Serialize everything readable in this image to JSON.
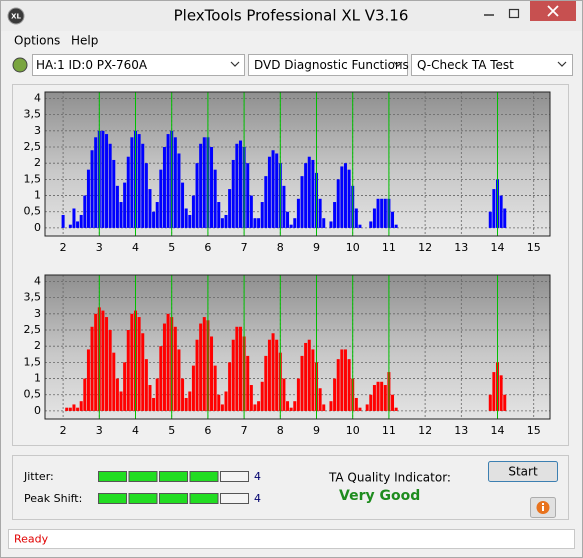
{
  "window": {
    "title": "PlexTools Professional XL V3.16",
    "icon": "XL"
  },
  "menu": [
    "Options",
    "Help"
  ],
  "toolbar": {
    "drive": "HA:1 ID:0  PX-760A",
    "function": "DVD Diagnostic Functions",
    "test": "Q-Check TA Test"
  },
  "chart_data": [
    {
      "type": "bar",
      "color": "#0000ff",
      "marker_color": "#00c000",
      "grid": true,
      "xlim": [
        1.5,
        15.45
      ],
      "ylim": [
        -0.25,
        4.2
      ],
      "xticks": [
        2,
        3,
        4,
        5,
        6,
        7,
        8,
        9,
        10,
        11,
        12,
        13,
        14,
        15
      ],
      "yticks": [
        0,
        {
          "value": 0.5,
          "label": "0,5"
        },
        1,
        {
          "value": 1.5,
          "label": "1,5"
        },
        2,
        {
          "value": 2.5,
          "label": "2,5"
        },
        3,
        {
          "value": 3.5,
          "label": "3,5"
        },
        4
      ],
      "markers": [
        3,
        4,
        5,
        6,
        7,
        8,
        9,
        10,
        11,
        14
      ],
      "x": [
        2.0,
        2.1,
        2.2,
        2.3,
        2.4,
        2.5,
        2.6,
        2.7,
        2.8,
        2.9,
        3.0,
        3.1,
        3.2,
        3.3,
        3.4,
        3.5,
        3.6,
        3.7,
        3.8,
        3.9,
        4.0,
        4.1,
        4.2,
        4.3,
        4.4,
        4.5,
        4.6,
        4.7,
        4.8,
        4.9,
        5.0,
        5.1,
        5.2,
        5.3,
        5.4,
        5.5,
        5.6,
        5.7,
        5.8,
        5.9,
        6.0,
        6.1,
        6.2,
        6.3,
        6.4,
        6.5,
        6.6,
        6.7,
        6.8,
        6.9,
        7.0,
        7.1,
        7.2,
        7.3,
        7.4,
        7.5,
        7.6,
        7.7,
        7.8,
        7.9,
        8.0,
        8.1,
        8.2,
        8.3,
        8.4,
        8.5,
        8.6,
        8.7,
        8.8,
        8.9,
        9.0,
        9.1,
        9.2,
        9.3,
        9.4,
        9.5,
        9.6,
        9.7,
        9.8,
        9.9,
        10.0,
        10.1,
        10.2,
        10.3,
        10.4,
        10.5,
        10.6,
        10.7,
        10.8,
        10.9,
        11.0,
        11.1,
        11.2,
        11.3,
        11.4,
        11.5,
        11.6,
        11.7,
        11.8,
        11.9,
        12.0,
        12.1,
        12.2,
        12.3,
        12.4,
        12.5,
        12.6,
        12.7,
        12.8,
        12.9,
        13.0,
        13.1,
        13.2,
        13.3,
        13.4,
        13.5,
        13.6,
        13.7,
        13.8,
        13.9,
        14.0,
        14.1,
        14.2,
        14.3
      ],
      "values": [
        0.4,
        0,
        0.1,
        0.6,
        0.2,
        0.4,
        1.0,
        1.8,
        2.4,
        2.8,
        3.0,
        3.0,
        2.9,
        2.6,
        2.1,
        1.3,
        0.8,
        1.4,
        2.2,
        2.8,
        3.0,
        2.9,
        2.6,
        2.0,
        1.2,
        0.5,
        0.8,
        1.8,
        2.5,
        2.9,
        3.0,
        2.8,
        2.3,
        1.4,
        0.6,
        0.4,
        1.0,
        2.0,
        2.6,
        2.8,
        2.8,
        2.5,
        1.8,
        0.8,
        0.3,
        0.4,
        1.2,
        2.1,
        2.6,
        2.7,
        2.5,
        2.0,
        1.0,
        0.3,
        0.3,
        0.8,
        1.6,
        2.2,
        2.4,
        2.3,
        2.0,
        1.3,
        0.5,
        0.1,
        0.3,
        0.9,
        1.6,
        2.0,
        2.2,
        2.1,
        1.7,
        0.9,
        0.3,
        0,
        0.2,
        0.8,
        1.5,
        1.9,
        2.0,
        1.8,
        1.3,
        0.6,
        0.1,
        0,
        0,
        0.2,
        0.6,
        0.9,
        0.9,
        0.9,
        0.9,
        0.5,
        0.1,
        0,
        0,
        0,
        0,
        0,
        0,
        0,
        0,
        0,
        0,
        0,
        0,
        0,
        0,
        0,
        0,
        0,
        0,
        0,
        0,
        0,
        0,
        0,
        0,
        0,
        0.5,
        1.2,
        1.5,
        1.0,
        0.6,
        0
      ]
    },
    {
      "type": "bar",
      "color": "#ff0000",
      "marker_color": "#00c000",
      "grid": true,
      "xlim": [
        1.5,
        15.45
      ],
      "ylim": [
        -0.25,
        4.2
      ],
      "xticks": [
        2,
        3,
        4,
        5,
        6,
        7,
        8,
        9,
        10,
        11,
        12,
        13,
        14,
        15
      ],
      "yticks": [
        0,
        {
          "value": 0.5,
          "label": "0,5"
        },
        1,
        {
          "value": 1.5,
          "label": "1,5"
        },
        2,
        {
          "value": 2.5,
          "label": "2,5"
        },
        3,
        {
          "value": 3.5,
          "label": "3,5"
        },
        4
      ],
      "markers": [
        3,
        4,
        5,
        6,
        7,
        8,
        9,
        10,
        11,
        14
      ],
      "x": [
        2.0,
        2.1,
        2.2,
        2.3,
        2.4,
        2.5,
        2.6,
        2.7,
        2.8,
        2.9,
        3.0,
        3.1,
        3.2,
        3.3,
        3.4,
        3.5,
        3.6,
        3.7,
        3.8,
        3.9,
        4.0,
        4.1,
        4.2,
        4.3,
        4.4,
        4.5,
        4.6,
        4.7,
        4.8,
        4.9,
        5.0,
        5.1,
        5.2,
        5.3,
        5.4,
        5.5,
        5.6,
        5.7,
        5.8,
        5.9,
        6.0,
        6.1,
        6.2,
        6.3,
        6.4,
        6.5,
        6.6,
        6.7,
        6.8,
        6.9,
        7.0,
        7.1,
        7.2,
        7.3,
        7.4,
        7.5,
        7.6,
        7.7,
        7.8,
        7.9,
        8.0,
        8.1,
        8.2,
        8.3,
        8.4,
        8.5,
        8.6,
        8.7,
        8.8,
        8.9,
        9.0,
        9.1,
        9.2,
        9.3,
        9.4,
        9.5,
        9.6,
        9.7,
        9.8,
        9.9,
        10.0,
        10.1,
        10.2,
        10.3,
        10.4,
        10.5,
        10.6,
        10.7,
        10.8,
        10.9,
        11.0,
        11.1,
        11.2,
        11.3,
        11.4,
        11.5,
        11.6,
        11.7,
        11.8,
        11.9,
        12.0,
        12.1,
        12.2,
        12.3,
        12.4,
        12.5,
        12.6,
        12.7,
        12.8,
        12.9,
        13.0,
        13.1,
        13.2,
        13.3,
        13.4,
        13.5,
        13.6,
        13.7,
        13.8,
        13.9,
        14.0,
        14.1,
        14.2,
        14.3
      ],
      "values": [
        0,
        0.1,
        0.1,
        0.2,
        0.1,
        0.3,
        1.0,
        1.9,
        2.6,
        3.0,
        3.2,
        3.1,
        2.9,
        2.5,
        1.8,
        1.0,
        0.6,
        1.5,
        2.5,
        3.0,
        3.1,
        2.9,
        2.4,
        1.6,
        0.8,
        0.4,
        1.0,
        2.0,
        2.7,
        3.0,
        2.9,
        2.6,
        1.9,
        1.0,
        0.4,
        0.6,
        1.4,
        2.2,
        2.7,
        2.9,
        2.8,
        2.3,
        1.4,
        0.5,
        0.2,
        0.6,
        1.5,
        2.2,
        2.6,
        2.6,
        2.3,
        1.7,
        0.8,
        0.2,
        0.3,
        0.9,
        1.7,
        2.2,
        2.4,
        2.2,
        1.8,
        1.0,
        0.3,
        0.1,
        0.3,
        1.0,
        1.7,
        2.1,
        2.2,
        1.9,
        1.5,
        0.7,
        0.2,
        0,
        0.3,
        1.0,
        1.6,
        1.9,
        1.9,
        1.6,
        1.0,
        0.4,
        0.1,
        0,
        0.2,
        0.5,
        0.8,
        0.9,
        0.9,
        0.8,
        1.2,
        0.5,
        0.1,
        0,
        0,
        0,
        0,
        0,
        0,
        0,
        0,
        0,
        0,
        0,
        0,
        0,
        0,
        0,
        0,
        0,
        0,
        0,
        0,
        0,
        0,
        0,
        0,
        0,
        0.5,
        1.2,
        1.5,
        1.1,
        0.5,
        0
      ]
    }
  ],
  "indicators": {
    "jitter": {
      "label": "Jitter:",
      "value": 4,
      "segments": 5
    },
    "peak_shift": {
      "label": "Peak Shift:",
      "value": 4,
      "segments": 5
    }
  },
  "ta_quality": {
    "label": "TA Quality Indicator:",
    "value": "Very Good"
  },
  "buttons": {
    "start": "Start"
  },
  "status": "Ready"
}
